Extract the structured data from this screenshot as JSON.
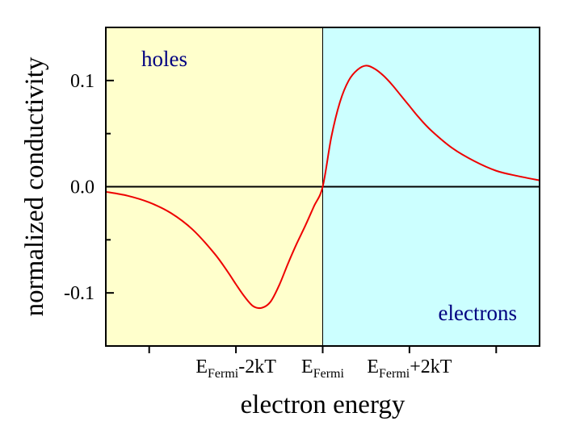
{
  "chart_data": {
    "type": "line",
    "title": "",
    "xlabel": "electron energy",
    "ylabel": "normalized conductivity",
    "xlim": [
      -5,
      5
    ],
    "ylim": [
      -0.15,
      0.15
    ],
    "yticks": [
      {
        "value": 0.1,
        "label": "0.1"
      },
      {
        "value": 0.0,
        "label": "0.0"
      },
      {
        "value": -0.1,
        "label": "-0.1"
      }
    ],
    "yminor_ticks": [
      0.05,
      -0.05
    ],
    "xticks": [
      {
        "value": -4
      },
      {
        "value": -2,
        "base": "E",
        "sub": "Fermi",
        "suffix": "-2kT"
      },
      {
        "value": 0,
        "base": "E",
        "sub": "Fermi",
        "suffix": ""
      },
      {
        "value": 2,
        "base": "E",
        "sub": "Fermi",
        "suffix": "+2kT"
      },
      {
        "value": 4
      }
    ],
    "grid": false,
    "zero_line": true,
    "regions": [
      {
        "name": "holes",
        "from": -5,
        "to": 0,
        "color": "#ffffcc",
        "label_color": "#000080"
      },
      {
        "name": "electrons",
        "from": 0,
        "to": 5,
        "color": "#ccffff",
        "label_color": "#000080"
      }
    ],
    "series": [
      {
        "color": "#ee0000",
        "x": [
          -5.0,
          -4.5,
          -4.0,
          -3.5,
          -3.0,
          -2.5,
          -2.2,
          -2.0,
          -1.8,
          -1.6,
          -1.4,
          -1.2,
          -1.0,
          -0.8,
          -0.6,
          -0.4,
          -0.2,
          0.0,
          0.2,
          0.4,
          0.6,
          0.8,
          1.0,
          1.2,
          1.4,
          1.6,
          1.8,
          2.0,
          2.2,
          2.5,
          3.0,
          3.5,
          4.0,
          4.5,
          5.0
        ],
        "y": [
          -0.0048,
          -0.0085,
          -0.0148,
          -0.0248,
          -0.0403,
          -0.0627,
          -0.0795,
          -0.0919,
          -0.1036,
          -0.1126,
          -0.114,
          -0.1082,
          -0.0925,
          -0.0724,
          -0.0537,
          -0.0366,
          -0.0183,
          0.0,
          0.047,
          0.08,
          0.1,
          0.11,
          0.114,
          0.111,
          0.1046,
          0.096,
          0.086,
          0.076,
          0.066,
          0.053,
          0.036,
          0.024,
          0.015,
          0.01,
          0.006
        ]
      }
    ]
  }
}
